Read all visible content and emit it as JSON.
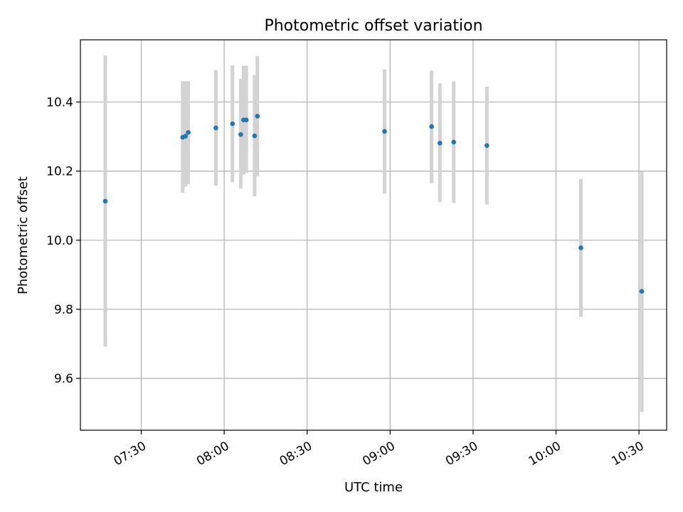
{
  "chart_data": {
    "type": "scatter",
    "title": "Photometric offset variation",
    "xlabel": "UTC time",
    "ylabel": "Photometric offset",
    "xlim": [
      "07:08",
      "10:40"
    ],
    "ylim": [
      9.45,
      10.58
    ],
    "xticks": [
      "07:30",
      "08:00",
      "08:30",
      "09:00",
      "09:30",
      "10:00",
      "10:30"
    ],
    "yticks": [
      9.6,
      9.8,
      10.0,
      10.2,
      10.4
    ],
    "grid": true,
    "point_color": "#1f77b4",
    "errorbar_color": "#d3d3d3",
    "points": [
      {
        "x": "07:17",
        "y": 10.113,
        "low": 9.692,
        "high": 10.535
      },
      {
        "x": "07:45",
        "y": 10.298,
        "low": 10.137,
        "high": 10.46
      },
      {
        "x": "07:46",
        "y": 10.301,
        "low": 10.155,
        "high": 10.46
      },
      {
        "x": "07:47",
        "y": 10.312,
        "low": 10.162,
        "high": 10.46
      },
      {
        "x": "07:57",
        "y": 10.325,
        "low": 10.158,
        "high": 10.492
      },
      {
        "x": "08:03",
        "y": 10.337,
        "low": 10.168,
        "high": 10.506
      },
      {
        "x": "08:06",
        "y": 10.306,
        "low": 10.15,
        "high": 10.467
      },
      {
        "x": "08:07",
        "y": 10.348,
        "low": 10.19,
        "high": 10.505
      },
      {
        "x": "08:08",
        "y": 10.348,
        "low": 10.195,
        "high": 10.505
      },
      {
        "x": "08:11",
        "y": 10.302,
        "low": 10.127,
        "high": 10.478
      },
      {
        "x": "08:12",
        "y": 10.359,
        "low": 10.185,
        "high": 10.533
      },
      {
        "x": "08:58",
        "y": 10.315,
        "low": 10.135,
        "high": 10.494
      },
      {
        "x": "09:15",
        "y": 10.329,
        "low": 10.165,
        "high": 10.491
      },
      {
        "x": "09:18",
        "y": 10.281,
        "low": 10.11,
        "high": 10.454
      },
      {
        "x": "09:23",
        "y": 10.284,
        "low": 10.108,
        "high": 10.459
      },
      {
        "x": "09:35",
        "y": 10.274,
        "low": 10.103,
        "high": 10.444
      },
      {
        "x": "10:09",
        "y": 9.978,
        "low": 9.778,
        "high": 10.177
      },
      {
        "x": "10:31",
        "y": 9.852,
        "low": 9.503,
        "high": 10.199
      }
    ]
  }
}
